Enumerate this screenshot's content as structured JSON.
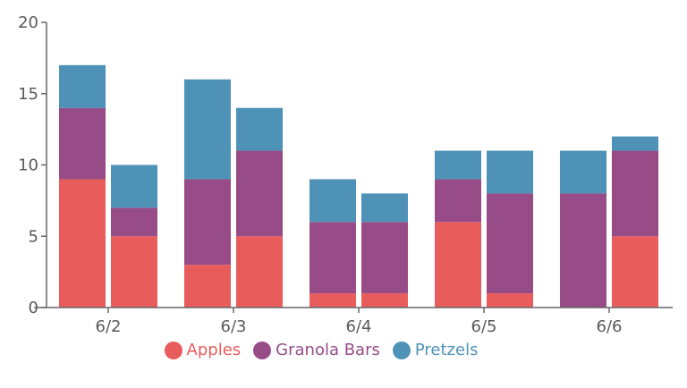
{
  "chart_data": {
    "type": "bar",
    "stacked": true,
    "grouped": true,
    "title": "",
    "xlabel": "",
    "ylabel": "",
    "ylim": [
      0,
      20
    ],
    "yticks": [
      0,
      5,
      10,
      15,
      20
    ],
    "grid": false,
    "legend_position": "bottom",
    "categories": [
      "6/2",
      "6/3",
      "6/4",
      "6/5",
      "6/6"
    ],
    "groups_per_category": 2,
    "series": [
      {
        "name": "Apples",
        "color": "#e85c5c",
        "values": [
          [
            9,
            5
          ],
          [
            3,
            5
          ],
          [
            1,
            1
          ],
          [
            6,
            1
          ],
          [
            0,
            5
          ]
        ]
      },
      {
        "name": "Granola Bars",
        "color": "#974c88",
        "values": [
          [
            5,
            2
          ],
          [
            6,
            6
          ],
          [
            5,
            5
          ],
          [
            3,
            7
          ],
          [
            8,
            6
          ]
        ]
      },
      {
        "name": "Pretzels",
        "color": "#4e92b8",
        "values": [
          [
            3,
            3
          ],
          [
            7,
            3
          ],
          [
            3,
            2
          ],
          [
            2,
            3
          ],
          [
            3,
            1
          ]
        ]
      }
    ]
  },
  "legend": [
    {
      "label": "Apples",
      "color": "#e85c5c"
    },
    {
      "label": "Granola Bars",
      "color": "#974c88"
    },
    {
      "label": "Pretzels",
      "color": "#4e92b8"
    }
  ]
}
